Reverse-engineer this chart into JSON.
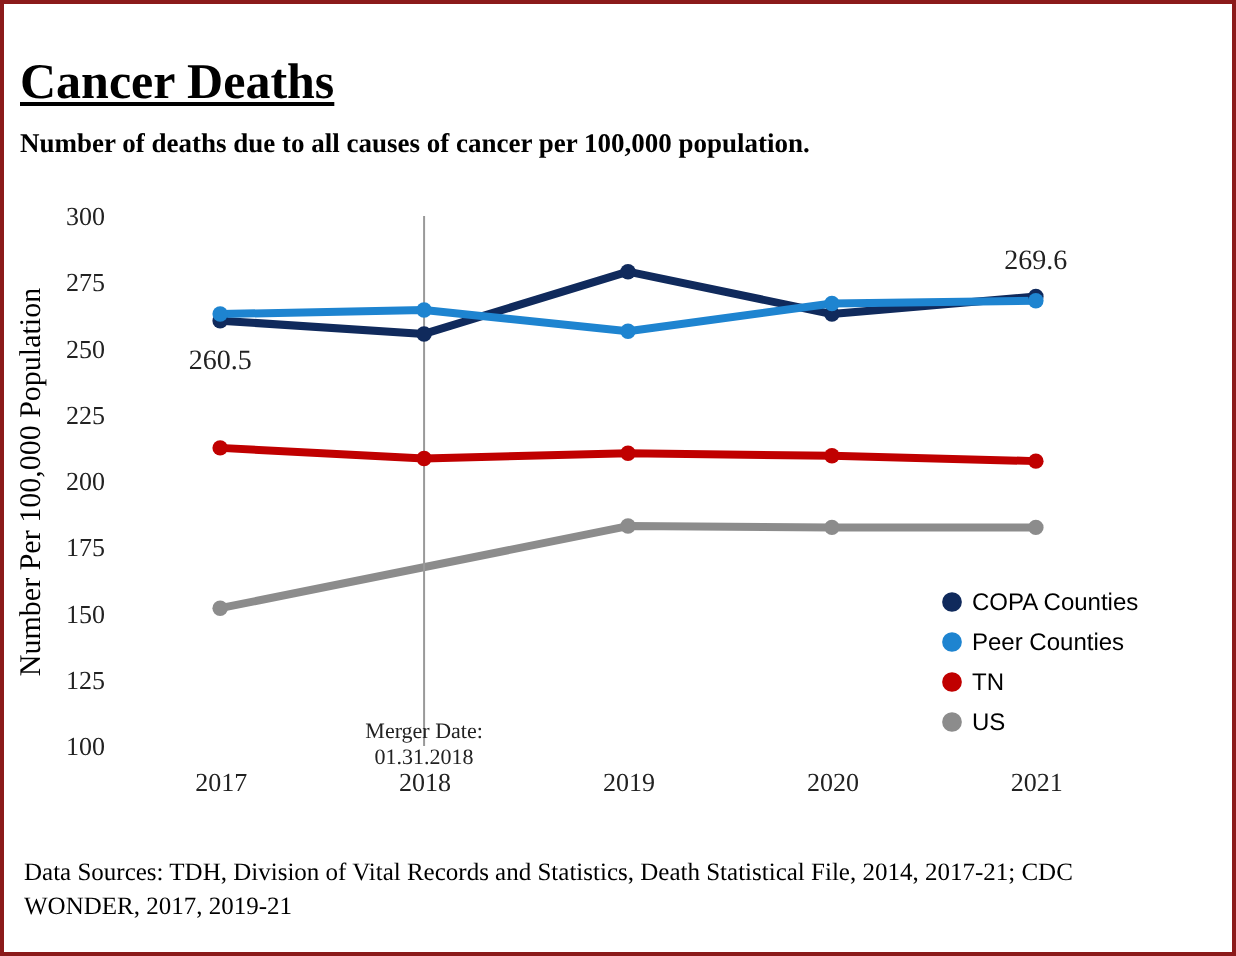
{
  "chart_data": {
    "type": "line",
    "title": "Cancer Deaths",
    "subtitle": "Number of deaths due to all causes of cancer per 100,000 population.",
    "ylabel": "Number Per 100,000 Population",
    "categories": [
      "2017",
      "2018",
      "2019",
      "2020",
      "2021"
    ],
    "series": [
      {
        "name": "COPA Counties",
        "color": "#102a5c",
        "values": [
          260.5,
          255.5,
          279,
          263,
          269.6
        ],
        "value_labels": [
          "260.5",
          null,
          null,
          null,
          "269.6"
        ]
      },
      {
        "name": "Peer Counties",
        "color": "#1e84d0",
        "values": [
          263,
          264.5,
          256.5,
          267,
          268
        ]
      },
      {
        "name": "TN",
        "color": "#c00000",
        "values": [
          212.5,
          208.5,
          210.5,
          209.5,
          207.5
        ]
      },
      {
        "name": "US",
        "color": "#8c8c8c",
        "values": [
          152,
          null,
          183,
          182.5,
          182.5
        ]
      }
    ],
    "ylim": [
      100,
      300
    ],
    "yticks": [
      100,
      125,
      150,
      175,
      200,
      225,
      250,
      275,
      300
    ],
    "grid": false,
    "legend": "bottom right",
    "marker": "circle",
    "line_style": "solid",
    "ref_lines": [
      {
        "axis": "x",
        "value": "2018",
        "label": "Merger Date:\n01.31.2018",
        "color": "#999999"
      }
    ],
    "annotations": [
      "Data Sources: TDH, Division of Vital Records and Statistics, Death Statistical File, 2014, 2017-21; CDC WONDER, 2017, 2019-21"
    ]
  }
}
